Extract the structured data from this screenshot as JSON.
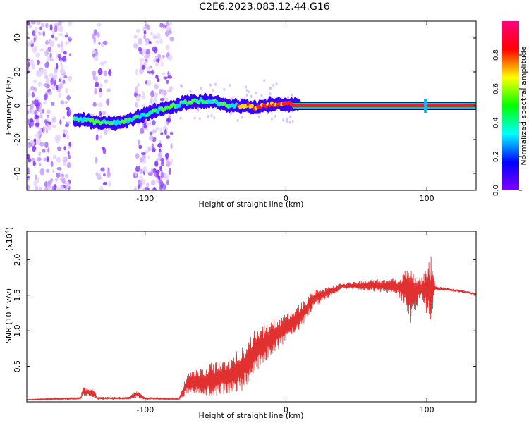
{
  "title": "C2E6.2023.083.12.44.G16",
  "chart_data": [
    {
      "type": "heatmap",
      "xlabel": "Height of straight line (km)",
      "ylabel": "Frequency (Hz)",
      "xlim": [
        -184,
        135
      ],
      "ylim": [
        -50,
        50
      ],
      "xticks": [
        {
          "v": -100,
          "label": "-100"
        },
        {
          "v": 0,
          "label": "0"
        },
        {
          "v": 100,
          "label": "100"
        }
      ],
      "yticks": [
        {
          "v": -40,
          "label": "-40"
        },
        {
          "v": -20,
          "label": "-20"
        },
        {
          "v": 0,
          "label": "0"
        },
        {
          "v": 20,
          "label": "20"
        },
        {
          "v": 40,
          "label": "40"
        }
      ],
      "colorbar": {
        "label": "Normalized spectral amplitude",
        "range": [
          0,
          1
        ],
        "ticks": [
          {
            "v": 0.0,
            "label": "0.0"
          },
          {
            "v": 0.2,
            "label": "0.2"
          },
          {
            "v": 0.4,
            "label": "0.4"
          },
          {
            "v": 0.6,
            "label": "0.6"
          },
          {
            "v": 0.8,
            "label": "0.8"
          }
        ],
        "colors": [
          "#ffffff",
          "#8000ff",
          "#0000ff",
          "#00ffff",
          "#00ff00",
          "#ffff00",
          "#ff0000",
          "#ff0080"
        ]
      },
      "scatter_regions": [
        {
          "x0": -184,
          "x1": -153,
          "density": 0.75
        },
        {
          "x0": -138,
          "x1": -125,
          "density": 0.4
        },
        {
          "x0": -107,
          "x1": -81,
          "density": 0.75
        }
      ],
      "signal_ridge": [
        {
          "x": -150,
          "f": -8
        },
        {
          "x": -140,
          "f": -9
        },
        {
          "x": -130,
          "f": -10
        },
        {
          "x": -120,
          "f": -10
        },
        {
          "x": -110,
          "f": -8
        },
        {
          "x": -100,
          "f": -5
        },
        {
          "x": -80,
          "f": 0
        },
        {
          "x": -70,
          "f": 2
        },
        {
          "x": -60,
          "f": 3
        },
        {
          "x": -50,
          "f": 2
        },
        {
          "x": -40,
          "f": 0
        },
        {
          "x": -30,
          "f": 0
        },
        {
          "x": -20,
          "f": -1
        },
        {
          "x": -10,
          "f": 1
        },
        {
          "x": 0,
          "f": 1
        },
        {
          "x": 20,
          "f": 0
        },
        {
          "x": 135,
          "f": 0
        }
      ]
    },
    {
      "type": "line",
      "xlabel": "Height of straight line (km)",
      "ylabel": "SNR (10 * v/v)",
      "yexp_label": "(x10",
      "yexp_power": "4",
      "xlim": [
        -184,
        135
      ],
      "ylim": [
        0,
        2.4
      ],
      "xticks": [
        {
          "v": -100,
          "label": "-100"
        },
        {
          "v": 0,
          "label": "0"
        },
        {
          "v": 100,
          "label": "100"
        }
      ],
      "yticks": [
        {
          "v": 0.5,
          "label": "0.5"
        },
        {
          "v": 1.0,
          "label": "1.0"
        },
        {
          "v": 1.5,
          "label": "1.5"
        },
        {
          "v": 2.0,
          "label": "2.0"
        }
      ],
      "color": "#e03030",
      "series": [
        {
          "name": "SNR",
          "envelope": [
            {
              "x": -184,
              "y": 0.03,
              "amp": 0.005
            },
            {
              "x": -146,
              "y": 0.05,
              "amp": 0.02
            },
            {
              "x": -144,
              "y": 0.15,
              "amp": 0.06
            },
            {
              "x": -136,
              "y": 0.12,
              "amp": 0.06
            },
            {
              "x": -134,
              "y": 0.05,
              "amp": 0.02
            },
            {
              "x": -112,
              "y": 0.05,
              "amp": 0.02
            },
            {
              "x": -106,
              "y": 0.11,
              "amp": 0.05
            },
            {
              "x": -100,
              "y": 0.05,
              "amp": 0.02
            },
            {
              "x": -76,
              "y": 0.04,
              "amp": 0.01
            },
            {
              "x": -70,
              "y": 0.25,
              "amp": 0.15
            },
            {
              "x": -60,
              "y": 0.28,
              "amp": 0.2
            },
            {
              "x": -50,
              "y": 0.33,
              "amp": 0.25
            },
            {
              "x": -40,
              "y": 0.35,
              "amp": 0.25
            },
            {
              "x": -30,
              "y": 0.5,
              "amp": 0.35
            },
            {
              "x": -20,
              "y": 0.75,
              "amp": 0.3
            },
            {
              "x": -10,
              "y": 0.9,
              "amp": 0.25
            },
            {
              "x": 0,
              "y": 1.05,
              "amp": 0.2
            },
            {
              "x": 10,
              "y": 1.2,
              "amp": 0.18
            },
            {
              "x": 20,
              "y": 1.45,
              "amp": 0.12
            },
            {
              "x": 40,
              "y": 1.63,
              "amp": 0.04
            },
            {
              "x": 60,
              "y": 1.64,
              "amp": 0.08
            },
            {
              "x": 80,
              "y": 1.62,
              "amp": 0.12
            },
            {
              "x": 84,
              "y": 1.6,
              "amp": 0.25
            },
            {
              "x": 88,
              "y": 1.5,
              "amp": 0.4
            },
            {
              "x": 96,
              "y": 1.6,
              "amp": 0.15
            },
            {
              "x": 103,
              "y": 1.55,
              "amp": 0.5
            },
            {
              "x": 106,
              "y": 1.6,
              "amp": 0.03
            },
            {
              "x": 120,
              "y": 1.57,
              "amp": 0.02
            },
            {
              "x": 135,
              "y": 1.52,
              "amp": 0.02
            }
          ]
        }
      ]
    }
  ]
}
